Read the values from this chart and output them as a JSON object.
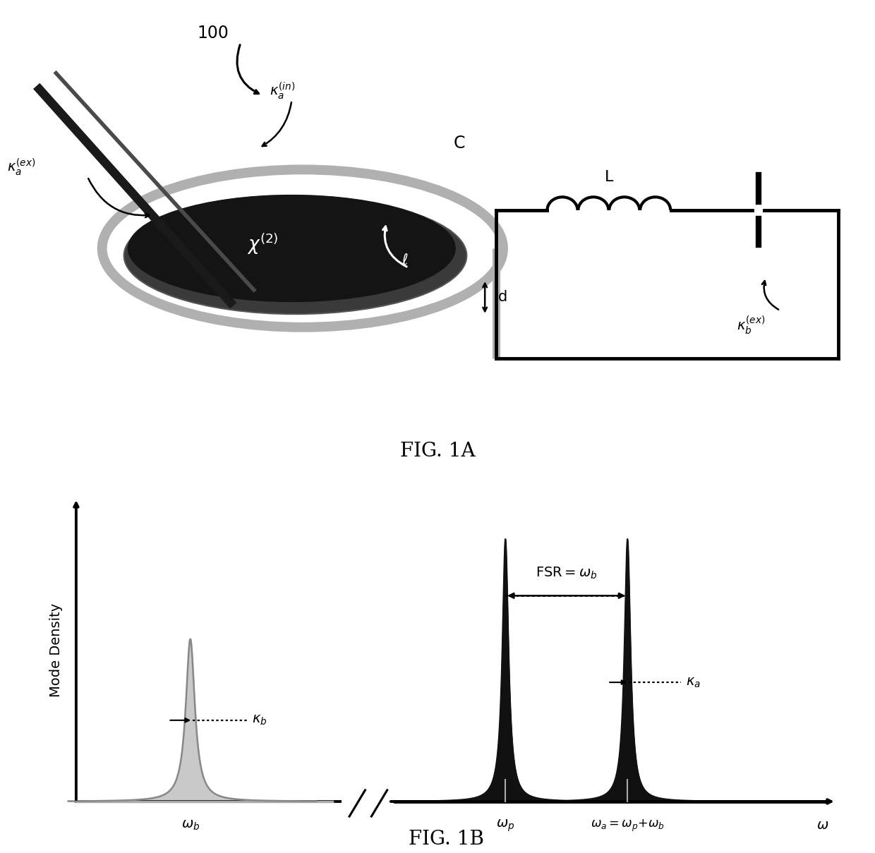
{
  "fig_width": 12.4,
  "fig_height": 12.09,
  "dpi": 100,
  "bg_color": "#ffffff",
  "fig1a_label": "FIG. 1A",
  "fig1b_label": "FIG. 1B",
  "gray_color": "#888888",
  "dark_color": "#111111",
  "label_mode_density": "Mode Density"
}
